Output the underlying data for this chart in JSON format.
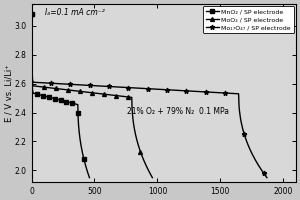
{
  "title": "",
  "xlabel": "",
  "ylabel": "E / V vs. Li/Li⁺",
  "annotation_current": "Iₐ=0.1 mA cm⁻²",
  "annotation_gas": "21% O₂ + 79% N₂  0.1 MPa",
  "xlim": [
    0,
    2100
  ],
  "ylim": [
    1.92,
    3.15
  ],
  "yticks": [
    2.0,
    2.2,
    2.4,
    2.6,
    2.8,
    3.0
  ],
  "xticks": [
    0,
    500,
    1000,
    1500,
    2000
  ],
  "legend_entries": [
    "MnO₂ / SP electrode",
    "MoO₂ / SP electrode",
    "Mo₁₇O₄₇ / SP electrode"
  ],
  "bg_color": "#c8c8c8",
  "plot_bg_color": "#d8d8d8",
  "line_color": "#000000",
  "curve1_cap_max": 460,
  "curve1_plateau": 2.535,
  "curve2_cap_max": 960,
  "curve2_plateau": 2.585,
  "curve3_cap_max_plateau": 1700,
  "curve3_cap_max": 1870,
  "curve3_plateau": 2.61
}
